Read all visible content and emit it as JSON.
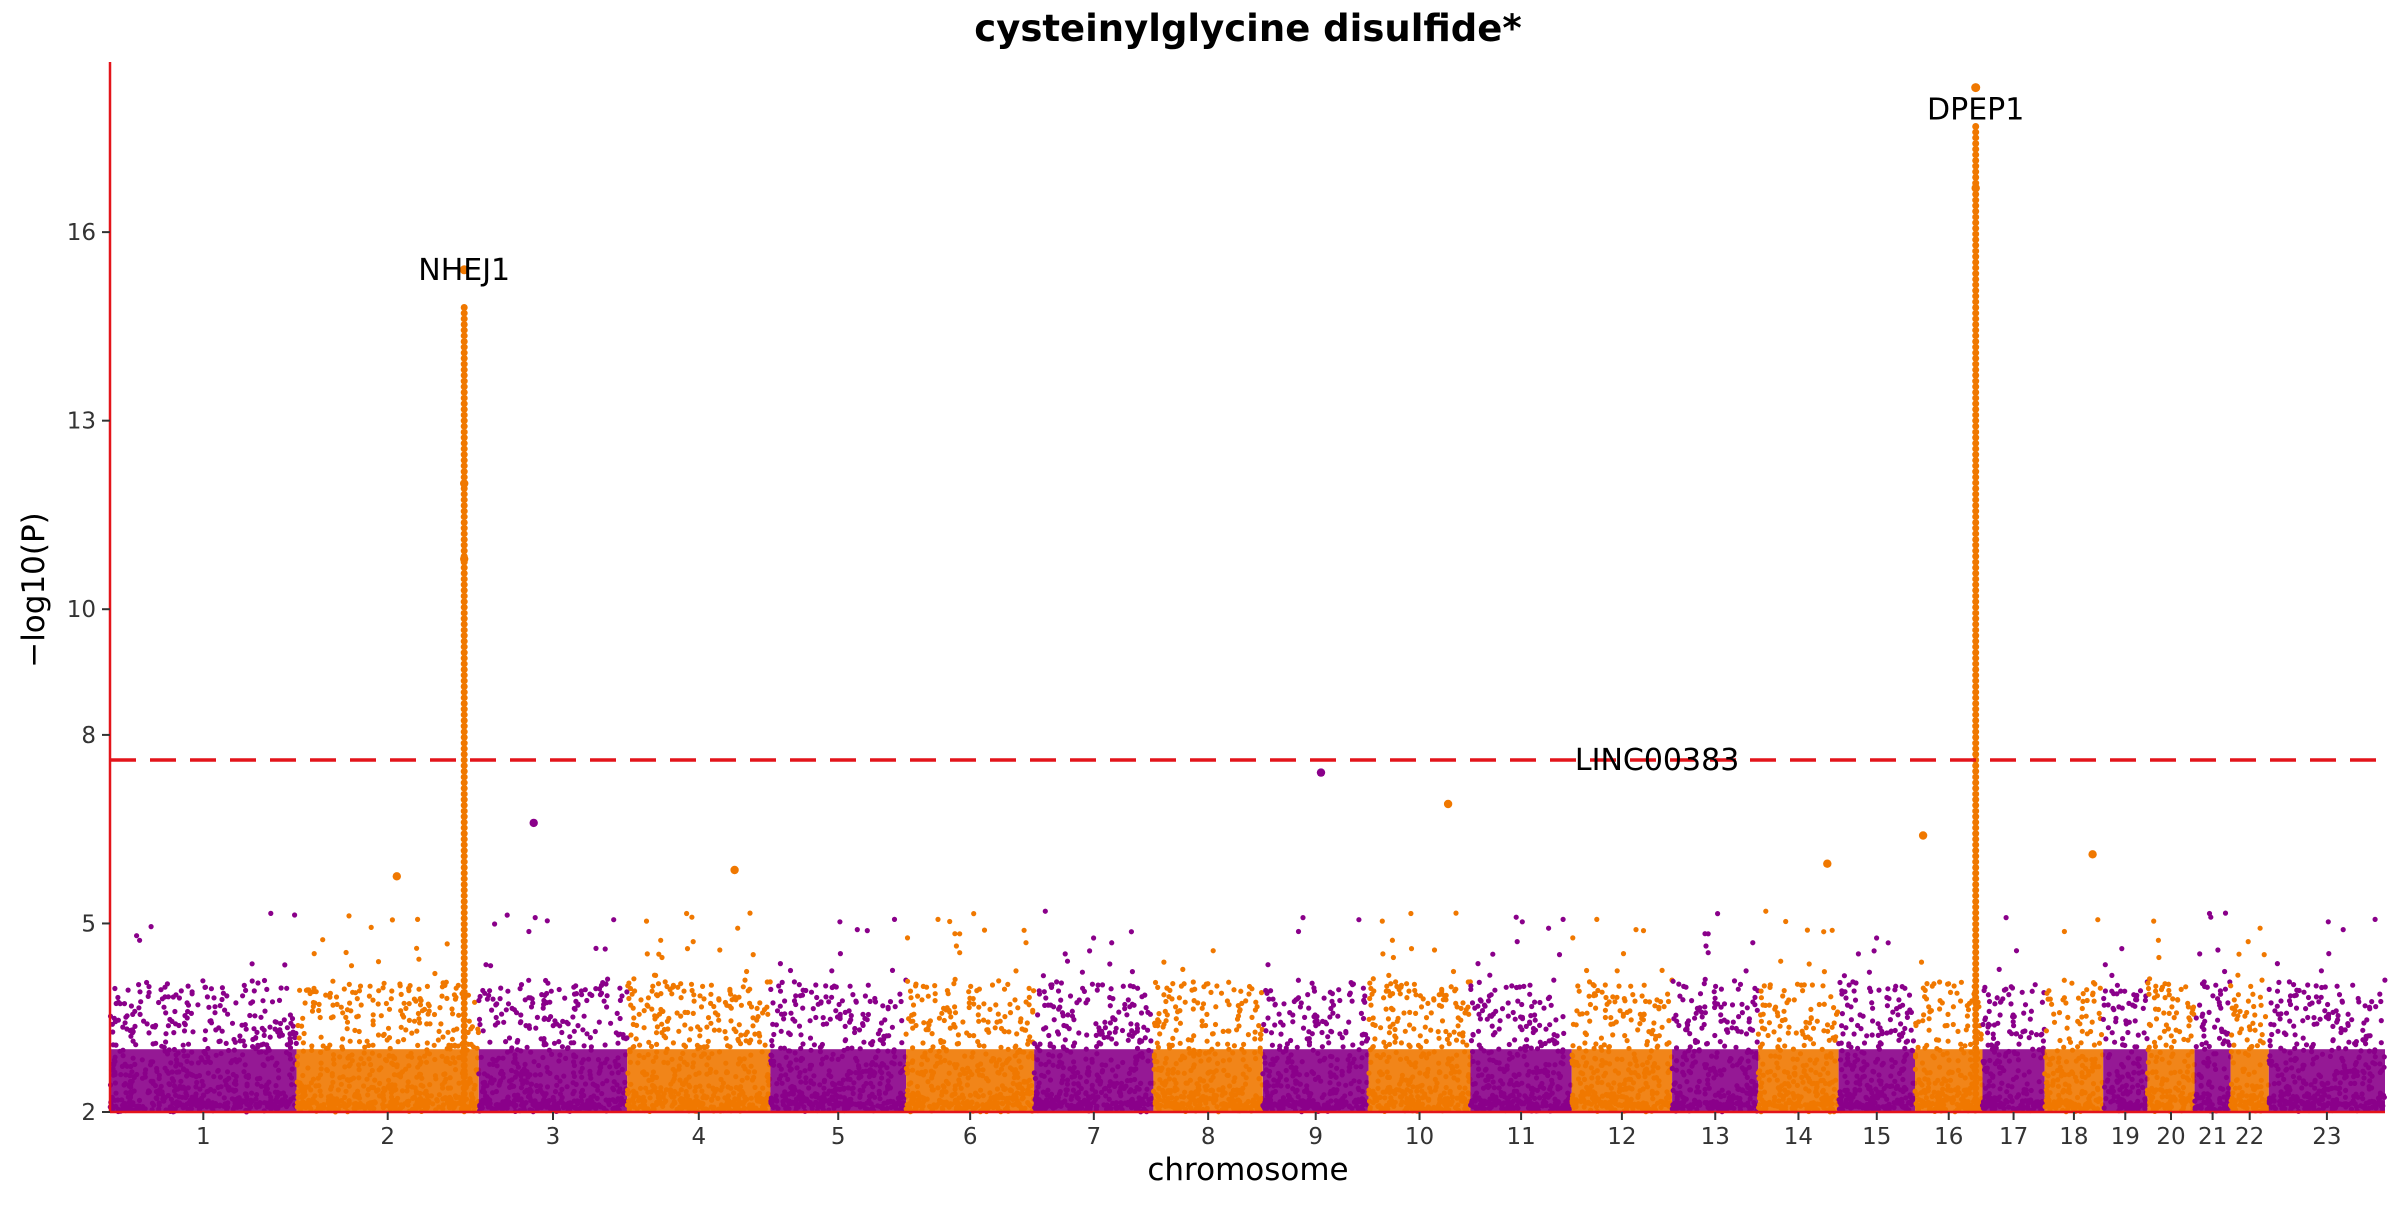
{
  "chart_data": {
    "type": "scatter",
    "title": "cysteinylglycine disulfide*",
    "xlabel": "chromosome",
    "ylabel": "−log10(P)",
    "ylim": [
      2,
      18.5
    ],
    "y_ticks": [
      2,
      5,
      8,
      10,
      13,
      16
    ],
    "threshold": 7.6,
    "threshold_color": "#e3141a",
    "axis_color": "#e3141a",
    "palette": [
      "#8a008a",
      "#f07800"
    ],
    "grid": false,
    "legend": "none",
    "chromosomes": [
      {
        "label": "1",
        "length": 249,
        "color": "#8a008a"
      },
      {
        "label": "2",
        "length": 243,
        "color": "#f07800"
      },
      {
        "label": "3",
        "length": 198,
        "color": "#8a008a"
      },
      {
        "label": "4",
        "length": 191,
        "color": "#f07800"
      },
      {
        "label": "5",
        "length": 181,
        "color": "#8a008a"
      },
      {
        "label": "6",
        "length": 171,
        "color": "#f07800"
      },
      {
        "label": "7",
        "length": 159,
        "color": "#8a008a"
      },
      {
        "label": "8",
        "length": 146,
        "color": "#f07800"
      },
      {
        "label": "9",
        "length": 141,
        "color": "#8a008a"
      },
      {
        "label": "10",
        "length": 136,
        "color": "#f07800"
      },
      {
        "label": "11",
        "length": 135,
        "color": "#8a008a"
      },
      {
        "label": "12",
        "length": 134,
        "color": "#f07800"
      },
      {
        "label": "13",
        "length": 115,
        "color": "#8a008a"
      },
      {
        "label": "14",
        "length": 107,
        "color": "#f07800"
      },
      {
        "label": "15",
        "length": 102,
        "color": "#8a008a"
      },
      {
        "label": "16",
        "length": 90,
        "color": "#f07800"
      },
      {
        "label": "17",
        "length": 83,
        "color": "#8a008a"
      },
      {
        "label": "18",
        "length": 78,
        "color": "#f07800"
      },
      {
        "label": "19",
        "length": 59,
        "color": "#8a008a"
      },
      {
        "label": "20",
        "length": 63,
        "color": "#f07800"
      },
      {
        "label": "21",
        "length": 48,
        "color": "#8a008a"
      },
      {
        "label": "22",
        "length": 51,
        "color": "#f07800"
      },
      {
        "label": "23",
        "length": 155,
        "color": "#8a008a"
      }
    ],
    "peaks": [
      {
        "chrom": "2",
        "pos": 0.92,
        "top": 15.4,
        "label": "NHEJ1"
      },
      {
        "chrom": "16",
        "pos": 0.9,
        "top": 18.3,
        "label": "DPEP1"
      },
      {
        "chrom": "12",
        "pos": 0.85,
        "top": null,
        "label": "LINC00383",
        "label_y": 7.6
      }
    ],
    "notable_points": [
      {
        "chrom": "2",
        "pos": 0.92,
        "y": 12.0
      },
      {
        "chrom": "2",
        "pos": 0.92,
        "y": 10.8
      },
      {
        "chrom": "3",
        "pos": 0.37,
        "y": 6.6
      },
      {
        "chrom": "9",
        "pos": 0.55,
        "y": 7.4
      },
      {
        "chrom": "10",
        "pos": 0.78,
        "y": 6.9
      },
      {
        "chrom": "14",
        "pos": 0.86,
        "y": 5.95
      },
      {
        "chrom": "16",
        "pos": 0.12,
        "y": 6.4
      },
      {
        "chrom": "16",
        "pos": 0.9,
        "y": 16.7
      },
      {
        "chrom": "18",
        "pos": 0.82,
        "y": 6.1
      },
      {
        "chrom": "4",
        "pos": 0.75,
        "y": 5.85
      },
      {
        "chrom": "2",
        "pos": 0.55,
        "y": 5.75
      }
    ]
  }
}
